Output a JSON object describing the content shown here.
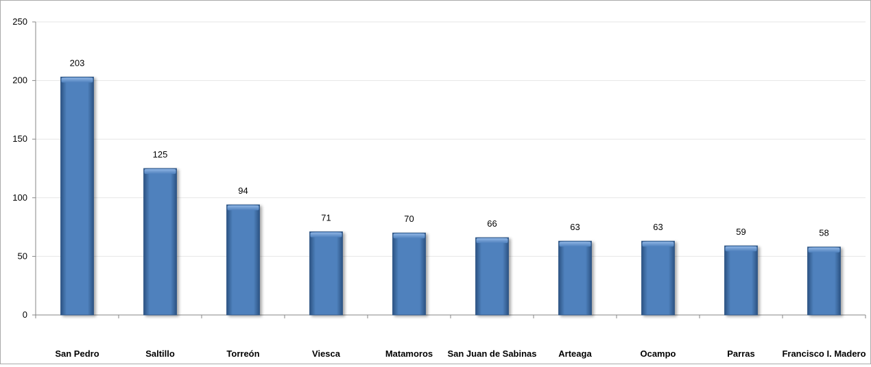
{
  "chart_data": {
    "type": "bar",
    "categories": [
      "San Pedro",
      "Saltillo",
      "Torreón",
      "Viesca",
      "Matamoros",
      "San Juan de Sabinas",
      "Arteaga",
      "Ocampo",
      "Parras",
      "Francisco I. Madero"
    ],
    "values": [
      203,
      125,
      94,
      71,
      70,
      66,
      63,
      63,
      59,
      58
    ],
    "title": "",
    "xlabel": "",
    "ylabel": "",
    "ylim": [
      0,
      250
    ],
    "yticks": [
      0,
      50,
      100,
      150,
      200,
      250
    ],
    "grid": true,
    "legend": "none",
    "data_labels": true
  },
  "colors": {
    "bar": "#4f81bd",
    "bar_light": "#8eb4e3",
    "bar_dark": "#2c5383",
    "gridline": "#e6e6e6",
    "axis": "#868686",
    "frame": "#a9a9a9"
  }
}
